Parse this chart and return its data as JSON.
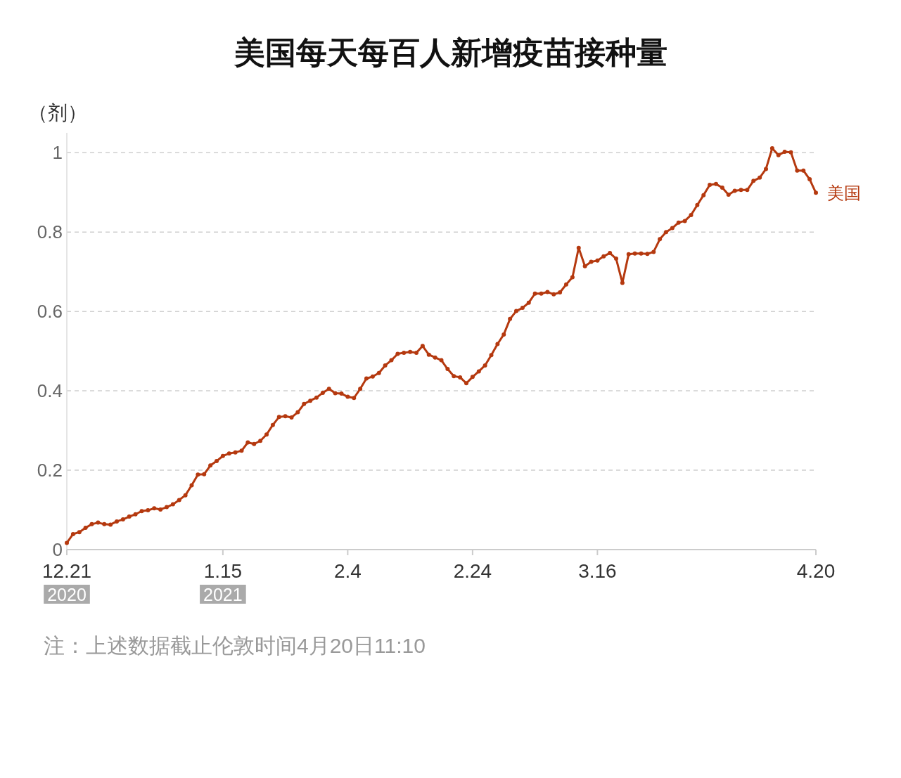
{
  "chart_data": {
    "type": "line",
    "title": "美国每天每百人新增疫苗接种量",
    "ylabel": "（剂）",
    "annotations": [
      "注：上述数据截止伦敦时间4月20日11:10"
    ],
    "x": [
      "2020-12-21",
      "2020-12-22",
      "2020-12-23",
      "2020-12-24",
      "2020-12-25",
      "2020-12-26",
      "2020-12-27",
      "2020-12-28",
      "2020-12-29",
      "2020-12-30",
      "2020-12-31",
      "2021-01-01",
      "2021-01-02",
      "2021-01-03",
      "2021-01-04",
      "2021-01-05",
      "2021-01-06",
      "2021-01-07",
      "2021-01-08",
      "2021-01-09",
      "2021-01-10",
      "2021-01-11",
      "2021-01-12",
      "2021-01-13",
      "2021-01-14",
      "2021-01-15",
      "2021-01-16",
      "2021-01-17",
      "2021-01-18",
      "2021-01-19",
      "2021-01-20",
      "2021-01-21",
      "2021-01-22",
      "2021-01-23",
      "2021-01-24",
      "2021-01-25",
      "2021-01-26",
      "2021-01-27",
      "2021-01-28",
      "2021-01-29",
      "2021-01-30",
      "2021-01-31",
      "2021-02-01",
      "2021-02-02",
      "2021-02-03",
      "2021-02-04",
      "2021-02-05",
      "2021-02-06",
      "2021-02-07",
      "2021-02-08",
      "2021-02-09",
      "2021-02-10",
      "2021-02-11",
      "2021-02-12",
      "2021-02-13",
      "2021-02-14",
      "2021-02-15",
      "2021-02-16",
      "2021-02-17",
      "2021-02-18",
      "2021-02-19",
      "2021-02-20",
      "2021-02-21",
      "2021-02-22",
      "2021-02-23",
      "2021-02-24",
      "2021-02-25",
      "2021-02-26",
      "2021-02-27",
      "2021-02-28",
      "2021-03-01",
      "2021-03-02",
      "2021-03-03",
      "2021-03-04",
      "2021-03-05",
      "2021-03-06",
      "2021-03-07",
      "2021-03-08",
      "2021-03-09",
      "2021-03-10",
      "2021-03-11",
      "2021-03-12",
      "2021-03-13",
      "2021-03-14",
      "2021-03-15",
      "2021-03-16",
      "2021-03-17",
      "2021-03-18",
      "2021-03-19",
      "2021-03-20",
      "2021-03-21",
      "2021-03-22",
      "2021-03-23",
      "2021-03-24",
      "2021-03-25",
      "2021-03-26",
      "2021-03-27",
      "2021-03-28",
      "2021-03-29",
      "2021-03-30",
      "2021-03-31",
      "2021-04-01",
      "2021-04-02",
      "2021-04-03",
      "2021-04-04",
      "2021-04-05",
      "2021-04-06",
      "2021-04-07",
      "2021-04-08",
      "2021-04-09",
      "2021-04-10",
      "2021-04-11",
      "2021-04-12",
      "2021-04-13",
      "2021-04-14",
      "2021-04-15",
      "2021-04-16",
      "2021-04-17",
      "2021-04-18",
      "2021-04-19",
      "2021-04-20"
    ],
    "series": [
      {
        "name": "美国",
        "color": "#b5390f",
        "values": [
          0.017,
          0.039,
          0.044,
          0.055,
          0.064,
          0.068,
          0.064,
          0.063,
          0.071,
          0.076,
          0.083,
          0.089,
          0.097,
          0.099,
          0.104,
          0.101,
          0.107,
          0.114,
          0.125,
          0.137,
          0.162,
          0.189,
          0.19,
          0.212,
          0.223,
          0.236,
          0.242,
          0.245,
          0.249,
          0.27,
          0.266,
          0.274,
          0.29,
          0.314,
          0.334,
          0.336,
          0.333,
          0.346,
          0.367,
          0.375,
          0.383,
          0.395,
          0.405,
          0.394,
          0.393,
          0.385,
          0.382,
          0.405,
          0.431,
          0.436,
          0.445,
          0.464,
          0.477,
          0.493,
          0.496,
          0.498,
          0.496,
          0.513,
          0.491,
          0.484,
          0.477,
          0.455,
          0.437,
          0.434,
          0.419,
          0.435,
          0.449,
          0.464,
          0.49,
          0.518,
          0.542,
          0.581,
          0.601,
          0.609,
          0.622,
          0.645,
          0.645,
          0.649,
          0.643,
          0.648,
          0.668,
          0.686,
          0.76,
          0.714,
          0.725,
          0.728,
          0.739,
          0.747,
          0.733,
          0.672,
          0.744,
          0.746,
          0.746,
          0.745,
          0.75,
          0.782,
          0.8,
          0.81,
          0.824,
          0.828,
          0.843,
          0.868,
          0.893,
          0.919,
          0.921,
          0.912,
          0.894,
          0.904,
          0.906,
          0.906,
          0.929,
          0.937,
          0.959,
          1.011,
          0.994,
          1.002,
          1.001,
          0.955,
          0.955,
          0.933,
          0.899
        ]
      }
    ],
    "xlim": [
      "2020-12-21",
      "2021-04-20"
    ],
    "xticks": [
      {
        "value": "2020-12-21",
        "label": "12.21\n2020"
      },
      {
        "value": "2021-01-15",
        "label": "1.15\n2021"
      },
      {
        "value": "2021-02-04",
        "label": "2.4"
      },
      {
        "value": "2021-02-24",
        "label": "2.24"
      },
      {
        "value": "2021-03-16",
        "label": "3.16"
      },
      {
        "value": "2021-04-20",
        "label": "4.20"
      }
    ],
    "ylim": [
      0,
      1.05
    ],
    "yticks": [
      0,
      0.2,
      0.4,
      0.6,
      0.8,
      1
    ],
    "grid": "y",
    "marker": "circle",
    "line_style": "solid"
  }
}
